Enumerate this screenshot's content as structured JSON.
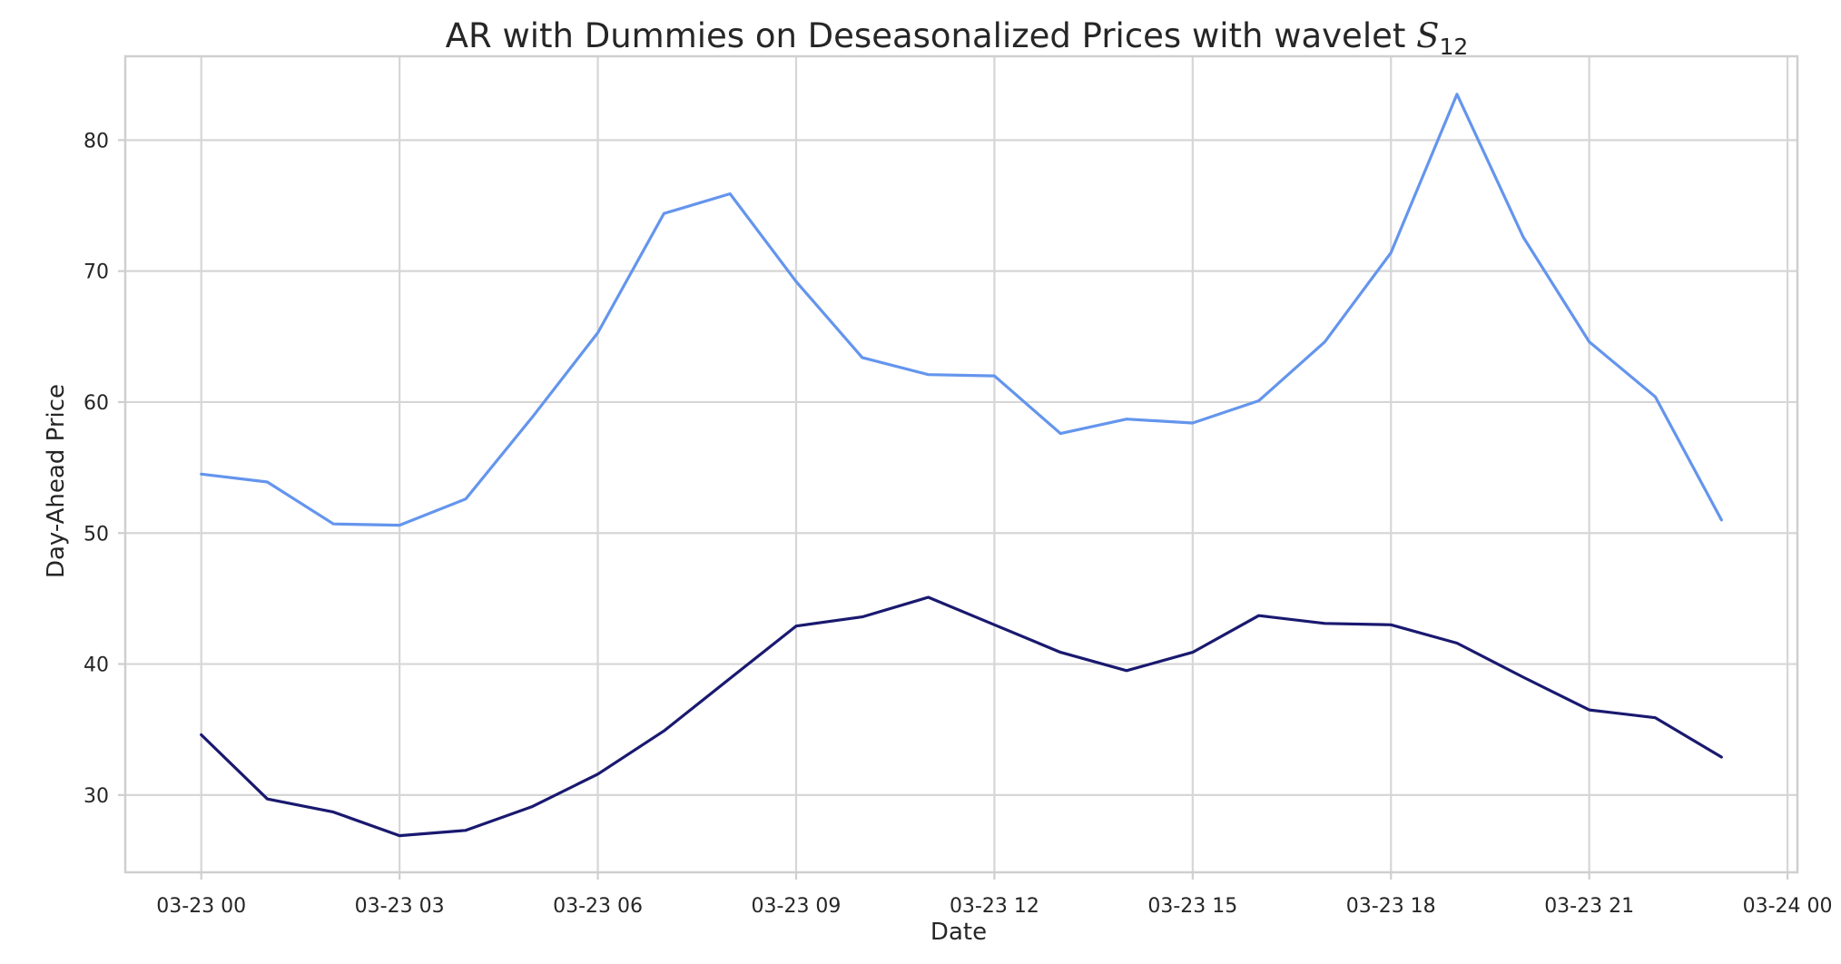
{
  "chart_data": {
    "type": "line",
    "title_main": "AR with Dummies on Deseasonalized Prices with wavelet ",
    "title_math": "S",
    "title_sub": "12",
    "xlabel": "Date",
    "ylabel": "Day-Ahead Price",
    "x_tick_labels": [
      "03-23 00",
      "03-23 03",
      "03-23 06",
      "03-23 09",
      "03-23 12",
      "03-23 15",
      "03-23 18",
      "03-23 21",
      "03-24 00"
    ],
    "y_ticks": [
      30,
      40,
      50,
      60,
      70,
      80
    ],
    "xlim_hours": [
      -1.15,
      24.15
    ],
    "ylim": [
      24.1,
      86.4
    ],
    "grid": true,
    "legend": "none",
    "x_hours": [
      0,
      1,
      2,
      3,
      4,
      5,
      6,
      7,
      8,
      9,
      10,
      11,
      12,
      13,
      14,
      15,
      16,
      17,
      18,
      19,
      20,
      21,
      22,
      23
    ],
    "series": [
      {
        "color": "#6495ed",
        "values": [
          54.5,
          53.9,
          50.7,
          50.6,
          52.6,
          58.8,
          65.3,
          74.4,
          75.9,
          69.2,
          63.4,
          62.1,
          62.0,
          57.6,
          58.7,
          58.4,
          60.1,
          64.6,
          71.4,
          83.5,
          72.6,
          64.6,
          60.4,
          51.0
        ]
      },
      {
        "color": "#191970",
        "values": [
          34.6,
          29.7,
          28.7,
          26.9,
          27.3,
          29.1,
          31.6,
          34.9,
          38.9,
          42.9,
          43.6,
          45.1,
          43.0,
          40.9,
          39.5,
          40.9,
          43.7,
          43.1,
          43.0,
          41.6,
          39.0,
          36.5,
          35.9,
          32.9
        ]
      }
    ]
  }
}
